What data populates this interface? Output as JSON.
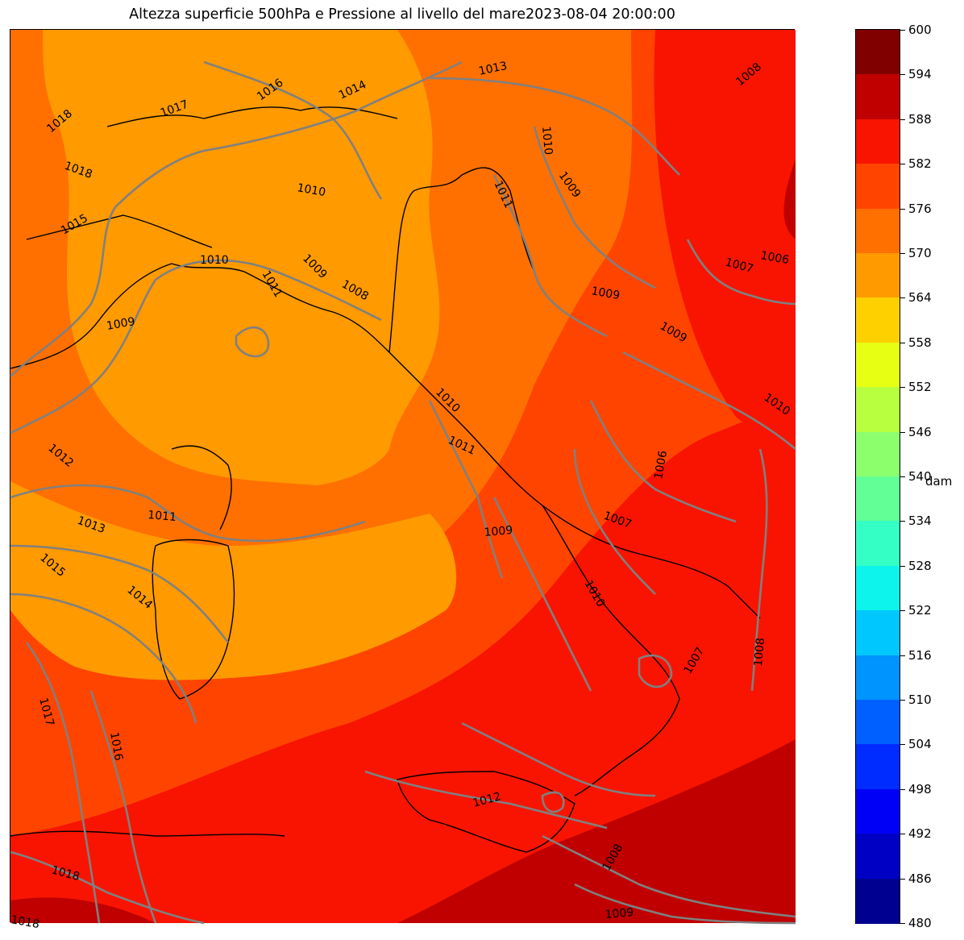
{
  "title": "Altezza superficie 500hPa e Pressione al livello del mare2023-08-04 20:00:00",
  "colorbar": {
    "unit": "dam",
    "labels": [
      "600",
      "594",
      "588",
      "582",
      "576",
      "570",
      "564",
      "558",
      "552",
      "546",
      "540",
      "534",
      "528",
      "522",
      "516",
      "510",
      "504",
      "498",
      "492",
      "486",
      "480"
    ],
    "colors": [
      "#800000",
      "#c00000",
      "#f81400",
      "#ff4400",
      "#ff7000",
      "#ff9a00",
      "#ffd000",
      "#e6ff12",
      "#b8ff40",
      "#8cff6d",
      "#62ff96",
      "#34ffc4",
      "#0cf4eb",
      "#00c8ff",
      "#0094ff",
      "#0060ff",
      "#002cff",
      "#0000f6",
      "#0000c4",
      "#000090"
    ]
  },
  "map": {
    "isobar_labels": [
      "1018",
      "1017",
      "1016",
      "1014",
      "1013",
      "1008",
      "1010",
      "1009",
      "1011",
      "1007",
      "1006",
      "1009",
      "1018",
      "1015",
      "1010",
      "1009",
      "1008",
      "1009",
      "1010",
      "1011",
      "1012",
      "1011",
      "1013",
      "1015",
      "1014",
      "1006",
      "1010",
      "1007",
      "1009",
      "1010",
      "1007",
      "1008",
      "1017",
      "1016",
      "1012",
      "1018",
      "1018",
      "1008",
      "1009",
      "1010",
      "1011",
      "1009"
    ]
  }
}
